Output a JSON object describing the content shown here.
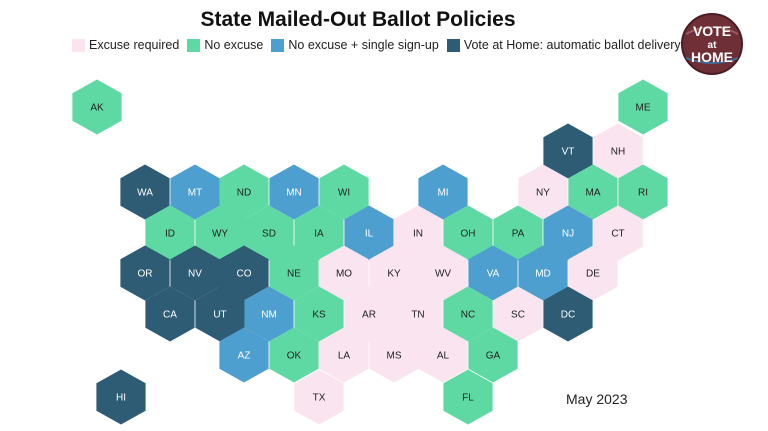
{
  "title": "State Mailed-Out Ballot Policies",
  "date": "May 2023",
  "logo": {
    "line1": "VOTE",
    "line2": "at",
    "line3": "HOME"
  },
  "legend": [
    {
      "key": "excuse",
      "label": "Excuse required",
      "color": "#f9e4f0"
    },
    {
      "key": "noexcuse",
      "label": "No excuse",
      "color": "#5fd9a3"
    },
    {
      "key": "single",
      "label": "No excuse + single sign-up",
      "color": "#4d9fd0"
    },
    {
      "key": "vah",
      "label": "Vote at Home: automatic ballot delivery",
      "color": "#2e5c74"
    }
  ],
  "states": [
    {
      "abbr": "AK",
      "policy": "noexcuse"
    },
    {
      "abbr": "ME",
      "policy": "noexcuse"
    },
    {
      "abbr": "VT",
      "policy": "vah"
    },
    {
      "abbr": "NH",
      "policy": "excuse"
    },
    {
      "abbr": "WA",
      "policy": "vah"
    },
    {
      "abbr": "MT",
      "policy": "single"
    },
    {
      "abbr": "ND",
      "policy": "noexcuse"
    },
    {
      "abbr": "MN",
      "policy": "single"
    },
    {
      "abbr": "WI",
      "policy": "noexcuse"
    },
    {
      "abbr": "MI",
      "policy": "single"
    },
    {
      "abbr": "NY",
      "policy": "excuse"
    },
    {
      "abbr": "MA",
      "policy": "noexcuse"
    },
    {
      "abbr": "RI",
      "policy": "noexcuse"
    },
    {
      "abbr": "ID",
      "policy": "noexcuse"
    },
    {
      "abbr": "WY",
      "policy": "noexcuse"
    },
    {
      "abbr": "SD",
      "policy": "noexcuse"
    },
    {
      "abbr": "IA",
      "policy": "noexcuse"
    },
    {
      "abbr": "IL",
      "policy": "single"
    },
    {
      "abbr": "IN",
      "policy": "excuse"
    },
    {
      "abbr": "OH",
      "policy": "noexcuse"
    },
    {
      "abbr": "PA",
      "policy": "noexcuse"
    },
    {
      "abbr": "NJ",
      "policy": "single"
    },
    {
      "abbr": "CT",
      "policy": "excuse"
    },
    {
      "abbr": "OR",
      "policy": "vah"
    },
    {
      "abbr": "NV",
      "policy": "vah"
    },
    {
      "abbr": "CO",
      "policy": "vah"
    },
    {
      "abbr": "NE",
      "policy": "noexcuse"
    },
    {
      "abbr": "MO",
      "policy": "excuse"
    },
    {
      "abbr": "KY",
      "policy": "excuse"
    },
    {
      "abbr": "WV",
      "policy": "excuse"
    },
    {
      "abbr": "VA",
      "policy": "single"
    },
    {
      "abbr": "MD",
      "policy": "single"
    },
    {
      "abbr": "DE",
      "policy": "excuse"
    },
    {
      "abbr": "CA",
      "policy": "vah"
    },
    {
      "abbr": "UT",
      "policy": "vah"
    },
    {
      "abbr": "NM",
      "policy": "single"
    },
    {
      "abbr": "KS",
      "policy": "noexcuse"
    },
    {
      "abbr": "AR",
      "policy": "excuse"
    },
    {
      "abbr": "TN",
      "policy": "excuse"
    },
    {
      "abbr": "NC",
      "policy": "noexcuse"
    },
    {
      "abbr": "SC",
      "policy": "excuse"
    },
    {
      "abbr": "DC",
      "policy": "vah"
    },
    {
      "abbr": "AZ",
      "policy": "single"
    },
    {
      "abbr": "OK",
      "policy": "noexcuse"
    },
    {
      "abbr": "LA",
      "policy": "excuse"
    },
    {
      "abbr": "MS",
      "policy": "excuse"
    },
    {
      "abbr": "AL",
      "policy": "excuse"
    },
    {
      "abbr": "GA",
      "policy": "noexcuse"
    },
    {
      "abbr": "HI",
      "policy": "vah"
    },
    {
      "abbr": "TX",
      "policy": "excuse"
    },
    {
      "abbr": "FL",
      "policy": "noexcuse"
    }
  ]
}
